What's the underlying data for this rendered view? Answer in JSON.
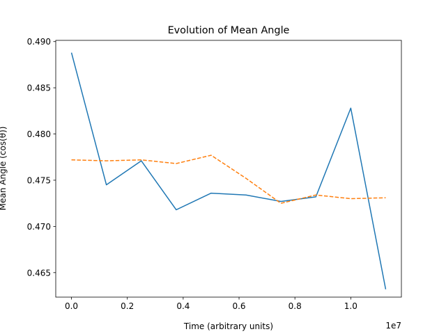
{
  "chart_data": {
    "type": "line",
    "title": "Evolution of Mean Angle",
    "xlabel": "Time (arbitrary units)",
    "ylabel": "Mean Angle (cos(θ))",
    "x_offset_label": "1e7",
    "xlim": [
      -0.05625,
      1.18125
    ],
    "ylim": [
      0.46235,
      0.49013
    ],
    "xticks": [
      0.0,
      0.2,
      0.4,
      0.6,
      0.8,
      1.0
    ],
    "xtick_labels": [
      "0.0",
      "0.2",
      "0.4",
      "0.6",
      "0.8",
      "1.0"
    ],
    "yticks": [
      0.465,
      0.47,
      0.475,
      0.48,
      0.485,
      0.49
    ],
    "ytick_labels": [
      "0.465",
      "0.470",
      "0.475",
      "0.480",
      "0.485",
      "0.490"
    ],
    "grid": false,
    "x": [
      0.0,
      0.125,
      0.25,
      0.375,
      0.5,
      0.625,
      0.75,
      0.875,
      1.0,
      1.125
    ],
    "series": [
      {
        "color": "#1f77b4",
        "style": "solid",
        "values": [
          0.4888,
          0.4745,
          0.4771,
          0.4718,
          0.4736,
          0.4734,
          0.4727,
          0.4732,
          0.4828,
          0.4632
        ]
      },
      {
        "color": "#ff7f0e",
        "style": "dashed",
        "values": [
          0.4772,
          0.4771,
          0.4772,
          0.4768,
          0.4777,
          0.4752,
          0.4725,
          0.4734,
          0.473,
          0.4731
        ]
      }
    ]
  }
}
